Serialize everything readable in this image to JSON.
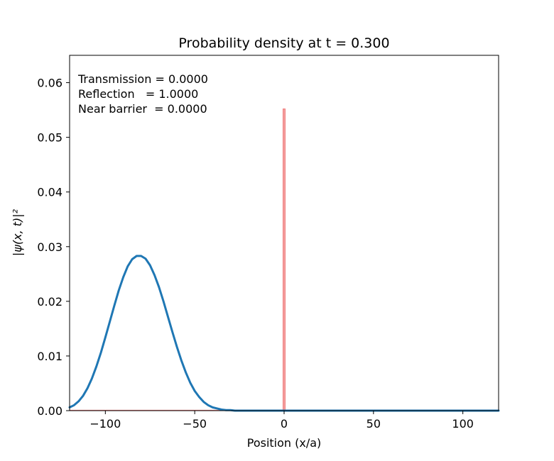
{
  "chart_data": {
    "type": "line",
    "title": "Probability density at t = 0.300",
    "xlabel": "Position (x/a)",
    "ylabel": "|ψ(x, t)|²",
    "xlim": [
      -120,
      120
    ],
    "ylim": [
      0,
      0.065
    ],
    "x_ticks": [
      -100,
      -50,
      0,
      50,
      100
    ],
    "x_tick_labels": [
      "−100",
      "−50",
      "0",
      "50",
      "100"
    ],
    "y_ticks": [
      0.0,
      0.01,
      0.02,
      0.03,
      0.04,
      0.05,
      0.06
    ],
    "y_tick_labels": [
      "0.00",
      "0.01",
      "0.02",
      "0.03",
      "0.04",
      "0.05",
      "0.06"
    ],
    "grid": false,
    "annotations": [
      "Transmission = 0.0000",
      "Reflection   = 1.0000",
      "Near barrier  = 0.0000"
    ],
    "series": [
      {
        "color": "#1f77b4",
        "x": [
          -120,
          -117.5,
          -115,
          -112.5,
          -110,
          -107.5,
          -105,
          -102.5,
          -100,
          -97.5,
          -95,
          -92.5,
          -90,
          -87.5,
          -85,
          -82.5,
          -80,
          -77.5,
          -75,
          -72.5,
          -70,
          -67.5,
          -65,
          -62.5,
          -60,
          -57.5,
          -55,
          -52.5,
          -50,
          -47.5,
          -45,
          -42.5,
          -40,
          -37.5,
          -35,
          -32.5,
          -30,
          -27.5,
          -25,
          -20,
          -10,
          0,
          20,
          50,
          80,
          120
        ],
        "y": [
          0.0006,
          0.001,
          0.0017,
          0.0027,
          0.0041,
          0.0059,
          0.0081,
          0.0106,
          0.0134,
          0.0163,
          0.0192,
          0.022,
          0.0244,
          0.0264,
          0.0277,
          0.0283,
          0.0283,
          0.0278,
          0.0266,
          0.0248,
          0.0226,
          0.02,
          0.0172,
          0.0144,
          0.0117,
          0.0092,
          0.007,
          0.0051,
          0.0036,
          0.0025,
          0.0016,
          0.001,
          0.0006,
          0.0004,
          0.0002,
          0.0001,
          0.0001,
          0.0,
          0.0,
          0.0,
          0.0,
          0.0,
          0.0,
          0.0,
          0.0,
          0.0
        ]
      }
    ],
    "barrier": {
      "x_start": -0.6,
      "x_end": 0.6,
      "height": 0.0552,
      "color": "#f08080"
    },
    "baseline_color": "#f08080"
  }
}
